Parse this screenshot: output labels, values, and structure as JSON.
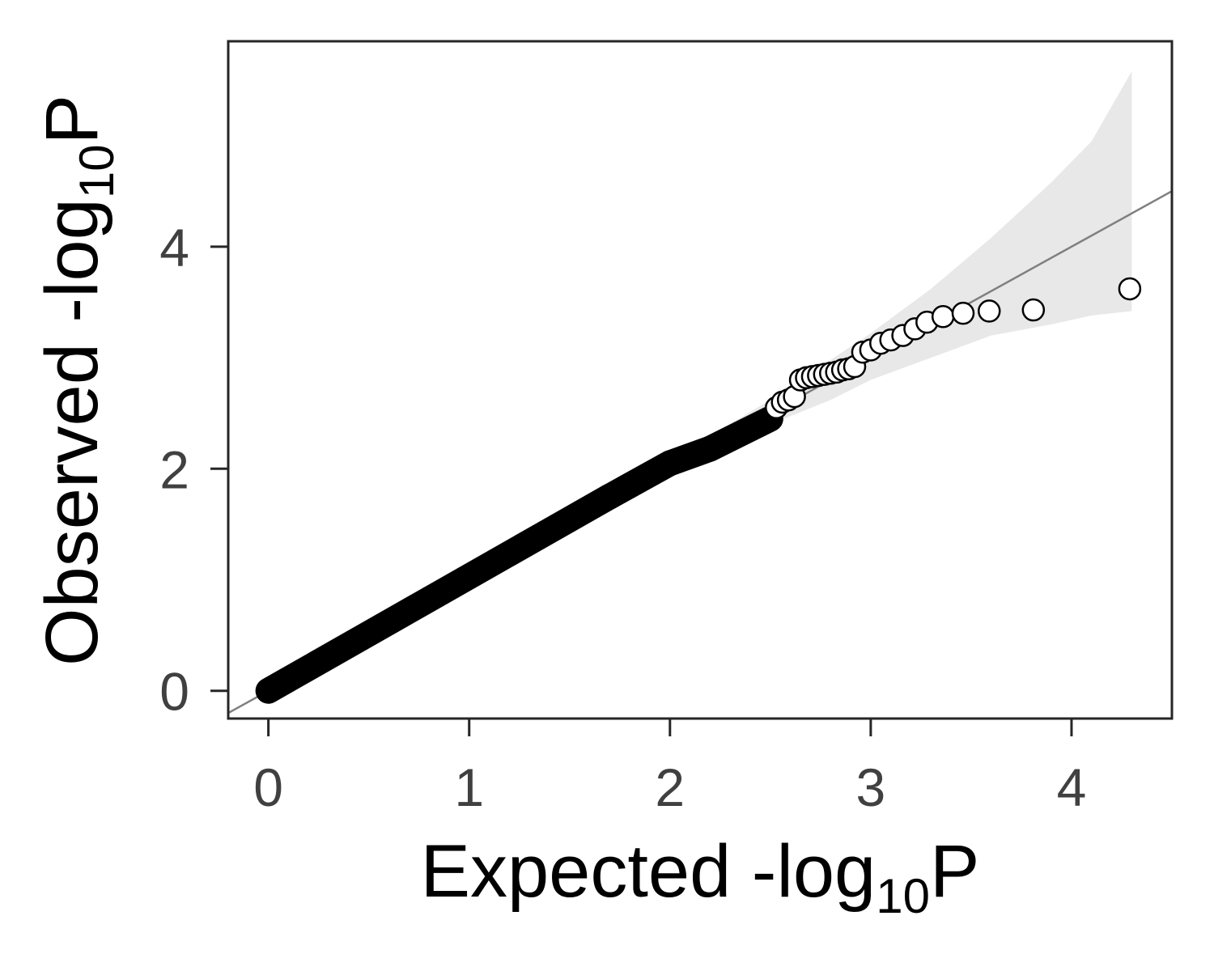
{
  "chart_data": {
    "type": "scatter",
    "title": "",
    "xlabel": {
      "base": "Expected -log",
      "subscript": "10",
      "suffix": "P"
    },
    "ylabel": {
      "base": "Observed -log",
      "subscript": "10",
      "suffix": "P"
    },
    "xlim": [
      -0.2,
      4.5
    ],
    "ylim": [
      -0.25,
      5.85
    ],
    "xticks": [
      0,
      1,
      2,
      3,
      4
    ],
    "yticks": [
      0,
      2,
      4
    ],
    "grid": false,
    "legend": "none",
    "reference_line": {
      "slope": 1,
      "intercept": 0,
      "color": "#808080"
    },
    "confidence_band": {
      "color": "#e8e8e8",
      "points": [
        {
          "x": 0,
          "lower": 0,
          "upper": 0
        },
        {
          "x": 1.5,
          "lower": 1.45,
          "upper": 1.55
        },
        {
          "x": 2.0,
          "lower": 1.92,
          "upper": 2.08
        },
        {
          "x": 2.5,
          "lower": 2.4,
          "upper": 2.62
        },
        {
          "x": 2.8,
          "lower": 2.62,
          "upper": 2.98
        },
        {
          "x": 3.0,
          "lower": 2.8,
          "upper": 3.22
        },
        {
          "x": 3.3,
          "lower": 3.0,
          "upper": 3.62
        },
        {
          "x": 3.6,
          "lower": 3.2,
          "upper": 4.08
        },
        {
          "x": 3.9,
          "lower": 3.3,
          "upper": 4.58
        },
        {
          "x": 4.1,
          "lower": 3.38,
          "upper": 4.95
        },
        {
          "x": 4.3,
          "lower": 3.42,
          "upper": 5.58
        }
      ]
    },
    "marker_color": "#000000",
    "dense_segments": [
      {
        "x0": 0.0,
        "y0": 0.0,
        "x1": 1.7,
        "y1": 1.75
      },
      {
        "x0": 1.7,
        "y0": 1.75,
        "x1": 2.0,
        "y1": 2.05
      },
      {
        "x0": 2.0,
        "y0": 2.05,
        "x1": 2.2,
        "y1": 2.18
      },
      {
        "x0": 2.2,
        "y0": 2.18,
        "x1": 2.5,
        "y1": 2.45
      }
    ],
    "points": [
      {
        "x": 2.53,
        "y": 2.55
      },
      {
        "x": 2.56,
        "y": 2.6
      },
      {
        "x": 2.59,
        "y": 2.62
      },
      {
        "x": 2.62,
        "y": 2.65
      },
      {
        "x": 2.65,
        "y": 2.8
      },
      {
        "x": 2.68,
        "y": 2.82
      },
      {
        "x": 2.71,
        "y": 2.83
      },
      {
        "x": 2.74,
        "y": 2.84
      },
      {
        "x": 2.77,
        "y": 2.85
      },
      {
        "x": 2.8,
        "y": 2.86
      },
      {
        "x": 2.83,
        "y": 2.87
      },
      {
        "x": 2.86,
        "y": 2.89
      },
      {
        "x": 2.89,
        "y": 2.9
      },
      {
        "x": 2.92,
        "y": 2.92
      },
      {
        "x": 2.96,
        "y": 3.05
      },
      {
        "x": 3.0,
        "y": 3.07
      },
      {
        "x": 3.05,
        "y": 3.13
      },
      {
        "x": 3.1,
        "y": 3.16
      },
      {
        "x": 3.16,
        "y": 3.2
      },
      {
        "x": 3.22,
        "y": 3.26
      },
      {
        "x": 3.28,
        "y": 3.32
      },
      {
        "x": 3.36,
        "y": 3.37
      },
      {
        "x": 3.46,
        "y": 3.4
      },
      {
        "x": 3.59,
        "y": 3.42
      },
      {
        "x": 3.81,
        "y": 3.43
      },
      {
        "x": 4.29,
        "y": 3.62
      }
    ]
  }
}
